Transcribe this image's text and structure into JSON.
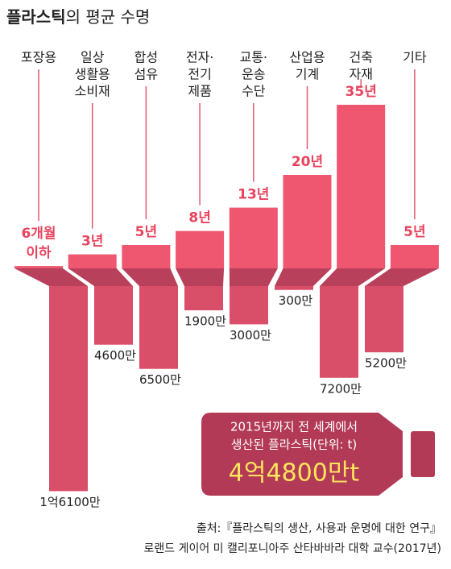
{
  "chart_data": {
    "type": "lifespan-production",
    "title": [
      "플라스틱",
      "의 평균 수명"
    ],
    "categories": [
      [
        "포장용"
      ],
      [
        "일상",
        "생활용",
        "소비재"
      ],
      [
        "합성",
        "섬유"
      ],
      [
        "전자·",
        "전기",
        "제품"
      ],
      [
        "교통·",
        "운송",
        "수단"
      ],
      [
        "산업용",
        "기계"
      ],
      [
        "건축",
        "자재"
      ],
      [
        "기타"
      ]
    ],
    "lifespan": {
      "color": "#ef5670",
      "label_color": "#e8445e",
      "values": [
        0.5,
        3,
        5,
        8,
        13,
        20,
        35,
        5
      ],
      "value_labels": [
        [
          "6개월",
          "이하"
        ],
        [
          "3년"
        ],
        [
          "5년"
        ],
        [
          "8년"
        ],
        [
          "13년"
        ],
        [
          "20년"
        ],
        [
          "35년"
        ],
        [
          "5년"
        ]
      ]
    },
    "production": {
      "color": "#d94e68",
      "values": [
        161000000,
        46000000,
        65000000,
        19000000,
        30000000,
        3000000,
        72000000,
        52000000
      ],
      "value_labels": [
        "1억6100만",
        "4600만",
        "6500만",
        "1900만",
        "3000만",
        "300만",
        "7200만",
        "5200만"
      ]
    },
    "total": {
      "color": "#b23a56",
      "label": [
        "2015년까지 전 세계에서",
        "생산된 플라스틱(단위: t)"
      ],
      "value": 448000000,
      "value_label": "4억4800만t"
    },
    "source": [
      "출처:『플라스틱의 생산, 사용과 운명에 대한 연구』",
      "로랜드 게이어 미 캘리포니아주 산타바바라 대학 교수(2017년)"
    ]
  }
}
